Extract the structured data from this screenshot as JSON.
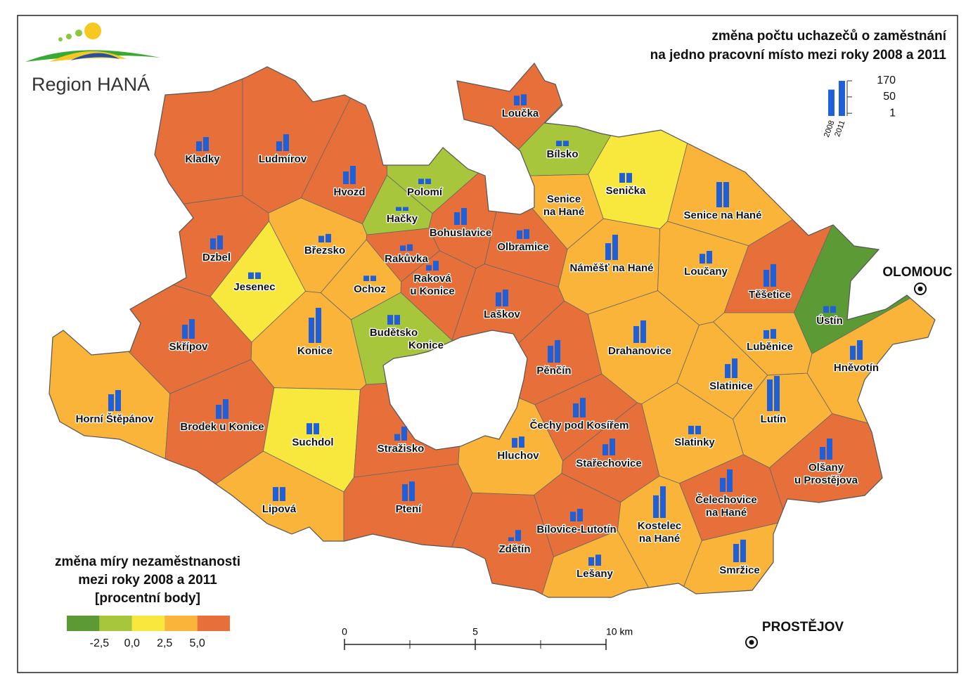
{
  "logo": {
    "text": "Region HANÁ"
  },
  "title": [
    "změna počtu uchazečů o zaměstnání",
    "na jedno pracovní místo mezi roky 2008 a 2011"
  ],
  "bar_legend": {
    "series": [
      "2008",
      "2011"
    ],
    "ticks": [
      170,
      50,
      1
    ],
    "scale": "sqrt",
    "bar_color": "#1f5fd8"
  },
  "color_legend": {
    "title": [
      "změna míry nezaměstnanosti",
      "mezi roky 2008 a 2011",
      "[procentní body]"
    ],
    "colors": [
      "#5b9a35",
      "#a7c63b",
      "#f8e73d",
      "#fbb43a",
      "#e7703a"
    ],
    "breaks": [
      {
        "value": -2.5,
        "label": "-2,5"
      },
      {
        "value": 0,
        "label": "0,0"
      },
      {
        "value": 2.5,
        "label": "2,5"
      },
      {
        "value": 5,
        "label": "5,0"
      }
    ]
  },
  "scale_bar": {
    "ticks": [
      0,
      5,
      {
        "value": 10,
        "label": "10 km"
      }
    ]
  },
  "cities": [
    "OLOMOUC",
    "PROSTĚJOV"
  ],
  "extra_labels": [
    "Konice"
  ],
  "municipalities": [
    {
      "name": [
        "Kladky"
      ],
      "color": "#e7703a",
      "values": [
        13,
        27
      ]
    },
    {
      "name": [
        "Ludmírov"
      ],
      "color": "#e7703a",
      "values": [
        13,
        39
      ]
    },
    {
      "name": [
        "Hvozd"
      ],
      "color": "#e7703a",
      "values": [
        22,
        46
      ]
    },
    {
      "name": [
        "Polomí"
      ],
      "color": "#a7c63b",
      "values": [
        4,
        4
      ]
    },
    {
      "name": [
        "Hačky"
      ],
      "color": "#a7c63b",
      "values": [
        2,
        2
      ]
    },
    {
      "name": [
        "Bohuslavice"
      ],
      "color": "#e7703a",
      "values": [
        22,
        39
      ]
    },
    {
      "name": [
        "Olbramice"
      ],
      "color": "#e7703a",
      "values": [
        10,
        13
      ]
    },
    {
      "name": [
        "Loučka"
      ],
      "color": "#e7703a",
      "values": [
        13,
        17
      ]
    },
    {
      "name": [
        "Bílsko"
      ],
      "color": "#a7c63b",
      "values": [
        4,
        4
      ]
    },
    {
      "name": [
        "Senice",
        "na Hané"
      ],
      "color": "#fbb43a",
      "values": [
        null,
        null
      ]
    },
    {
      "name": [
        "Senička"
      ],
      "color": "#f8e73d",
      "values": [
        13,
        13
      ]
    },
    {
      "name": [
        "Senice na Hané"
      ],
      "color": "#fbb43a",
      "values": [
        88,
        88
      ]
    },
    {
      "name": [
        "Náměšť na Hané"
      ],
      "color": "#fbb43a",
      "values": [
        39,
        88
      ]
    },
    {
      "name": [
        "Loučany"
      ],
      "color": "#fbb43a",
      "values": [
        13,
        22
      ]
    },
    {
      "name": [
        "Těšetice"
      ],
      "color": "#e7703a",
      "values": [
        39,
        70
      ]
    },
    {
      "name": [
        "Ústín"
      ],
      "color": "#5b9a35",
      "values": [
        6,
        6
      ]
    },
    {
      "name": [
        "Lutín"
      ],
      "color": "#fbb43a",
      "values": [
        138,
        170
      ]
    },
    {
      "name": [
        "Luběnice"
      ],
      "color": "#fbb43a",
      "values": [
        10,
        13
      ]
    },
    {
      "name": [
        "Hněvotín"
      ],
      "color": "#fbb43a",
      "values": [
        27,
        53
      ]
    },
    {
      "name": [
        "Slatinice"
      ],
      "color": "#fbb43a",
      "values": [
        27,
        53
      ]
    },
    {
      "name": [
        "Drahanovice"
      ],
      "color": "#fbb43a",
      "values": [
        39,
        70
      ]
    },
    {
      "name": [
        "Slatinky"
      ],
      "color": "#fbb43a",
      "values": [
        10,
        10
      ]
    },
    {
      "name": [
        "Olšany",
        "u Prostějova"
      ],
      "color": "#e7703a",
      "values": [
        22,
        61
      ]
    },
    {
      "name": [
        "Čelechovice",
        "na Hané"
      ],
      "color": "#e7703a",
      "values": [
        27,
        70
      ]
    },
    {
      "name": [
        "Smržice"
      ],
      "color": "#fbb43a",
      "values": [
        46,
        70
      ]
    },
    {
      "name": [
        "Kostelec",
        "na Hané"
      ],
      "color": "#fbb43a",
      "values": [
        70,
        138
      ]
    },
    {
      "name": [
        "Lešany"
      ],
      "color": "#fbb43a",
      "values": [
        10,
        17
      ]
    },
    {
      "name": [
        "Bílovice-Lutotín"
      ],
      "color": "#e7703a",
      "values": [
        13,
        22
      ]
    },
    {
      "name": [
        "Zdětín"
      ],
      "color": "#e7703a",
      "values": [
        2,
        17
      ]
    },
    {
      "name": [
        "Stařechovice"
      ],
      "color": "#e7703a",
      "values": [
        17,
        39
      ]
    },
    {
      "name": [
        "Čechy pod Kosířem"
      ],
      "color": "#e7703a",
      "values": [
        27,
        53
      ]
    },
    {
      "name": [
        "Hluchov"
      ],
      "color": "#fbb43a",
      "values": [
        13,
        17
      ]
    },
    {
      "name": [
        "Pěnčín"
      ],
      "color": "#e7703a",
      "values": [
        39,
        70
      ]
    },
    {
      "name": [
        "Laškov"
      ],
      "color": "#e7703a",
      "values": [
        27,
        39
      ]
    },
    {
      "name": [
        "Raková",
        "u Konice"
      ],
      "color": "#e7703a",
      "values": [
        4,
        13
      ]
    },
    {
      "name": [
        "Rakůvka"
      ],
      "color": "#e7703a",
      "values": [
        4,
        6
      ]
    },
    {
      "name": [
        "Ochoz"
      ],
      "color": "#fbb43a",
      "values": [
        4,
        4
      ]
    },
    {
      "name": [
        "Březsko"
      ],
      "color": "#fbb43a",
      "values": [
        6,
        10
      ]
    },
    {
      "name": [
        "Dzbel"
      ],
      "color": "#e7703a",
      "values": [
        17,
        27
      ]
    },
    {
      "name": [
        "Jesenec"
      ],
      "color": "#f8e73d",
      "values": [
        6,
        6
      ]
    },
    {
      "name": [
        "Budětsko"
      ],
      "color": "#a7c63b",
      "values": [
        13,
        13
      ]
    },
    {
      "name": [
        "Konice"
      ],
      "color": "#fbb43a",
      "values": [
        88,
        170
      ]
    },
    {
      "name": [
        "Skřípov"
      ],
      "color": "#e7703a",
      "values": [
        27,
        53
      ]
    },
    {
      "name": [
        "Horní Štěpánov"
      ],
      "color": "#fbb43a",
      "values": [
        39,
        61
      ]
    },
    {
      "name": [
        "Brodek u Konice"
      ],
      "color": "#e7703a",
      "values": [
        27,
        53
      ]
    },
    {
      "name": [
        "Suchdol"
      ],
      "color": "#f8e73d",
      "values": [
        17,
        17
      ]
    },
    {
      "name": [
        "Stražisko"
      ],
      "color": "#e7703a",
      "values": [
        6,
        27
      ]
    },
    {
      "name": [
        "Lipová"
      ],
      "color": "#fbb43a",
      "values": [
        27,
        27
      ]
    },
    {
      "name": [
        "Ptení"
      ],
      "color": "#e7703a",
      "values": [
        39,
        53
      ]
    }
  ]
}
